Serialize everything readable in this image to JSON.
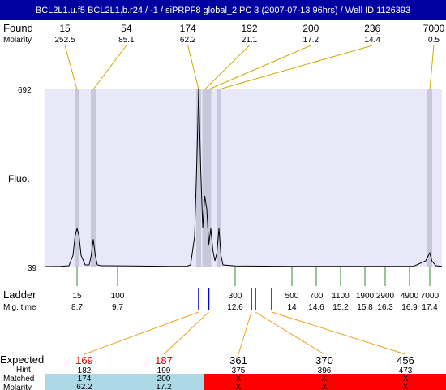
{
  "title": "BCL2L1.u.f5  BCL2L1.b.r24 / -1 / siPRPF8 global_2|PC 3 (2007-07-13 96hrs) / Well ID 1126393",
  "labels": {
    "found": "Found",
    "molarity": "Molarity",
    "fluo": "Fluo.",
    "ladder": "Ladder",
    "mig_time": "Mig. time",
    "expected": "Expected",
    "hint": "Hint",
    "matched": "Matched",
    "molarity_row": "Molarity"
  },
  "colors": {
    "title_bg": "#0000a0",
    "plot_bg": "#e8e8f8",
    "band": "#c8c8dc",
    "found_line": "#ccaa00",
    "ladder_tick": "#2e8b2e",
    "sample_tick": "#0000cc",
    "expected_red": "#e00000",
    "matched_ok": "#add8e6",
    "matched_missing": "#ff0000",
    "expected_line": "#f0a020"
  },
  "chart_data": {
    "type": "line",
    "ylabel": "Fluo.",
    "y_ticks": [
      39,
      692
    ],
    "mig_time_range": [
      7.9,
      17.7
    ],
    "found_peaks": [
      {
        "size": "15",
        "molarity": "252.5",
        "time": 8.7
      },
      {
        "size": "54",
        "molarity": "85.1",
        "time": 9.1
      },
      {
        "size": "174",
        "molarity": "62.2",
        "time": 11.7
      },
      {
        "size": "192",
        "molarity": "21.1",
        "time": 11.85
      },
      {
        "size": "200",
        "molarity": "17.2",
        "time": 11.95
      },
      {
        "size": "236",
        "molarity": "14.4",
        "time": 12.2
      },
      {
        "size": "7000",
        "molarity": "0.5",
        "time": 17.4
      }
    ],
    "ladder": [
      {
        "size": "15",
        "time": "8.7"
      },
      {
        "size": "100",
        "time": "9.7"
      },
      {
        "size": "300",
        "time": "12.6"
      },
      {
        "size": "500",
        "time": "14"
      },
      {
        "size": "700",
        "time": "14.6"
      },
      {
        "size": "1100",
        "time": "15.2"
      },
      {
        "size": "1900",
        "time": "15.8"
      },
      {
        "size": "2900",
        "time": "16.3"
      },
      {
        "size": "4900",
        "time": "16.9"
      },
      {
        "size": "7000",
        "time": "17.4"
      }
    ],
    "sample_ticks": [
      11.7,
      11.95,
      13.0,
      13.1,
      13.5
    ],
    "expected": [
      {
        "size": "169",
        "hint": "182",
        "matched": "174",
        "molarity": "62.2",
        "highlight": true,
        "status": "matched",
        "tick_time": 11.7
      },
      {
        "size": "187",
        "hint": "199",
        "matched": "200",
        "molarity": "17.2",
        "highlight": true,
        "status": "matched",
        "tick_time": 11.95
      },
      {
        "size": "361",
        "hint": "375",
        "matched": "X",
        "molarity": "X",
        "highlight": false,
        "status": "missing",
        "tick_time": 13.0
      },
      {
        "size": "370",
        "hint": "396",
        "matched": "X",
        "molarity": "X",
        "highlight": false,
        "status": "missing",
        "tick_time": 13.1
      },
      {
        "size": "456",
        "hint": "473",
        "matched": "X",
        "molarity": "X",
        "highlight": false,
        "status": "missing",
        "tick_time": 13.5
      }
    ],
    "trace": [
      [
        7.9,
        39
      ],
      [
        8.3,
        40
      ],
      [
        8.5,
        42
      ],
      [
        8.6,
        80
      ],
      [
        8.65,
        150
      ],
      [
        8.7,
        180
      ],
      [
        8.75,
        150
      ],
      [
        8.8,
        80
      ],
      [
        8.9,
        45
      ],
      [
        9.0,
        45
      ],
      [
        9.05,
        80
      ],
      [
        9.1,
        140
      ],
      [
        9.15,
        80
      ],
      [
        9.2,
        45
      ],
      [
        9.3,
        42
      ],
      [
        10.0,
        41
      ],
      [
        11.0,
        40
      ],
      [
        11.4,
        40
      ],
      [
        11.5,
        45
      ],
      [
        11.6,
        150
      ],
      [
        11.65,
        400
      ],
      [
        11.7,
        692
      ],
      [
        11.75,
        400
      ],
      [
        11.8,
        180
      ],
      [
        11.85,
        300
      ],
      [
        11.9,
        250
      ],
      [
        11.95,
        120
      ],
      [
        12.0,
        180
      ],
      [
        12.05,
        100
      ],
      [
        12.1,
        60
      ],
      [
        12.15,
        90
      ],
      [
        12.2,
        180
      ],
      [
        12.25,
        80
      ],
      [
        12.3,
        45
      ],
      [
        12.6,
        41
      ],
      [
        14.0,
        40
      ],
      [
        16.0,
        40
      ],
      [
        17.0,
        40
      ],
      [
        17.3,
        60
      ],
      [
        17.4,
        90
      ],
      [
        17.45,
        60
      ],
      [
        17.55,
        42
      ],
      [
        17.7,
        40
      ]
    ]
  }
}
